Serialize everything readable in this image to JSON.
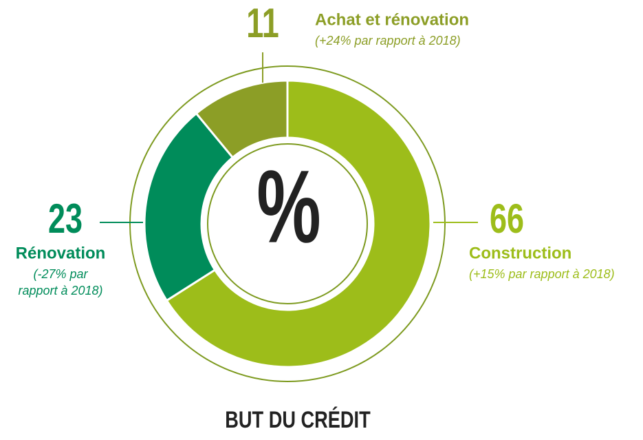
{
  "chart_data": {
    "type": "donut",
    "title": "BUT DU CRÉDIT",
    "center_label": "%",
    "categories": [
      "Construction",
      "Rénovation",
      "Achat et rénovation"
    ],
    "values": [
      66,
      23,
      11
    ],
    "notes": [
      "(+15% par rapport à 2018)",
      "(-27% par rapport à 2018)",
      "(+24% par rapport à 2018)"
    ],
    "colors": [
      "#9dbd1a",
      "#008c5a",
      "#8c9e26"
    ]
  }
}
